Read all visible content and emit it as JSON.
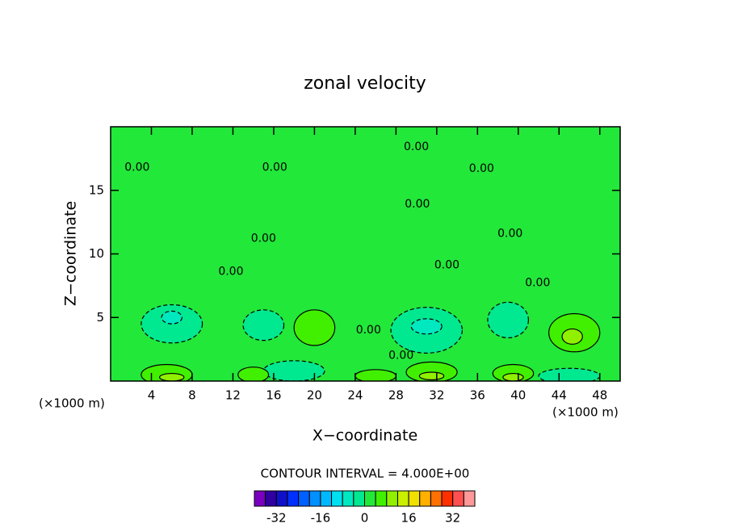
{
  "chart_data": {
    "type": "contour",
    "title": "zonal velocity",
    "xlabel": "X−coordinate",
    "ylabel": "Z−coordinate",
    "xunit_label": "(×1000 m)",
    "yunit_label": "(×1000 m)",
    "interval_label": "CONTOUR INTERVAL = 4.000E+00",
    "xlim": [
      0,
      50
    ],
    "ylim": [
      0,
      20
    ],
    "xticks": [
      4,
      8,
      12,
      16,
      20,
      24,
      28,
      32,
      36,
      40,
      44,
      48
    ],
    "yticks": [
      5,
      10,
      15
    ],
    "background_value": 2,
    "regions": [
      {
        "x": 6,
        "z": 4.5,
        "rx": 3,
        "rz": 1.5,
        "value": -2
      },
      {
        "x": 15,
        "z": 4.4,
        "rx": 2,
        "rz": 1.2,
        "value": -2
      },
      {
        "x": 31,
        "z": 4,
        "rx": 3.5,
        "rz": 1.8,
        "value": -2
      },
      {
        "x": 39,
        "z": 4.8,
        "rx": 2,
        "rz": 1.4,
        "value": -2
      },
      {
        "x": 45,
        "z": 0.4,
        "rx": 3,
        "rz": 0.6,
        "value": -2
      },
      {
        "x": 18,
        "z": 0.8,
        "rx": 3,
        "rz": 0.8,
        "value": -2
      },
      {
        "x": 31,
        "z": 4.3,
        "rx": 1.5,
        "rz": 0.6,
        "value": -6
      },
      {
        "x": 6,
        "z": 5,
        "rx": 1,
        "rz": 0.5,
        "value": -6
      },
      {
        "x": 20,
        "z": 4.2,
        "rx": 2,
        "rz": 1.4,
        "value": 6
      },
      {
        "x": 45.5,
        "z": 3.8,
        "rx": 2.5,
        "rz": 1.5,
        "value": 6
      },
      {
        "x": 5.5,
        "z": 0.5,
        "rx": 2.5,
        "rz": 0.8,
        "value": 6
      },
      {
        "x": 14,
        "z": 0.5,
        "rx": 1.5,
        "rz": 0.6,
        "value": 6
      },
      {
        "x": 31.5,
        "z": 0.7,
        "rx": 2.5,
        "rz": 0.8,
        "value": 6
      },
      {
        "x": 39.5,
        "z": 0.6,
        "rx": 2,
        "rz": 0.7,
        "value": 6
      },
      {
        "x": 26,
        "z": 0.4,
        "rx": 2,
        "rz": 0.5,
        "value": 6
      },
      {
        "x": 45.3,
        "z": 3.5,
        "rx": 1,
        "rz": 0.6,
        "value": 10
      },
      {
        "x": 6,
        "z": 0.3,
        "rx": 1.2,
        "rz": 0.3,
        "value": 10
      },
      {
        "x": 31.5,
        "z": 0.4,
        "rx": 1.2,
        "rz": 0.3,
        "value": 10
      },
      {
        "x": 39.5,
        "z": 0.3,
        "rx": 1,
        "rz": 0.3,
        "value": 10
      }
    ],
    "contour_labels": [
      {
        "text": "0.00",
        "x": 2.6,
        "z": 16.8
      },
      {
        "text": "0.00",
        "x": 16.1,
        "z": 16.8
      },
      {
        "text": "0.00",
        "x": 30,
        "z": 18.4
      },
      {
        "text": "0.00",
        "x": 36.4,
        "z": 16.7
      },
      {
        "text": "0.00",
        "x": 30.1,
        "z": 13.9
      },
      {
        "text": "0.00",
        "x": 15,
        "z": 11.2
      },
      {
        "text": "0.00",
        "x": 39.2,
        "z": 11.6
      },
      {
        "text": "0.00",
        "x": 11.8,
        "z": 8.6
      },
      {
        "text": "0.00",
        "x": 33,
        "z": 9.1
      },
      {
        "text": "0.00",
        "x": 41.9,
        "z": 7.7
      },
      {
        "text": "0.00",
        "x": 25.3,
        "z": 4
      },
      {
        "text": "0.00",
        "x": 28.5,
        "z": 2
      }
    ],
    "colorbar": {
      "levels": [
        -40,
        -36,
        -32,
        -28,
        -24,
        -20,
        -16,
        -12,
        -8,
        -4,
        0,
        4,
        8,
        12,
        16,
        20,
        24,
        28,
        32,
        36,
        40
      ],
      "colors": [
        "#7a00c0",
        "#3000a0",
        "#1010c8",
        "#0030ff",
        "#0060ff",
        "#0090ff",
        "#00b8ff",
        "#00e0f0",
        "#00e8c0",
        "#00e890",
        "#22e83a",
        "#40f000",
        "#90f000",
        "#c8f000",
        "#f0e000",
        "#ffb000",
        "#ff7000",
        "#ff3000",
        "#ff5050",
        "#ff9898"
      ],
      "ticks": [
        -32,
        -16,
        0,
        16,
        32
      ]
    }
  }
}
